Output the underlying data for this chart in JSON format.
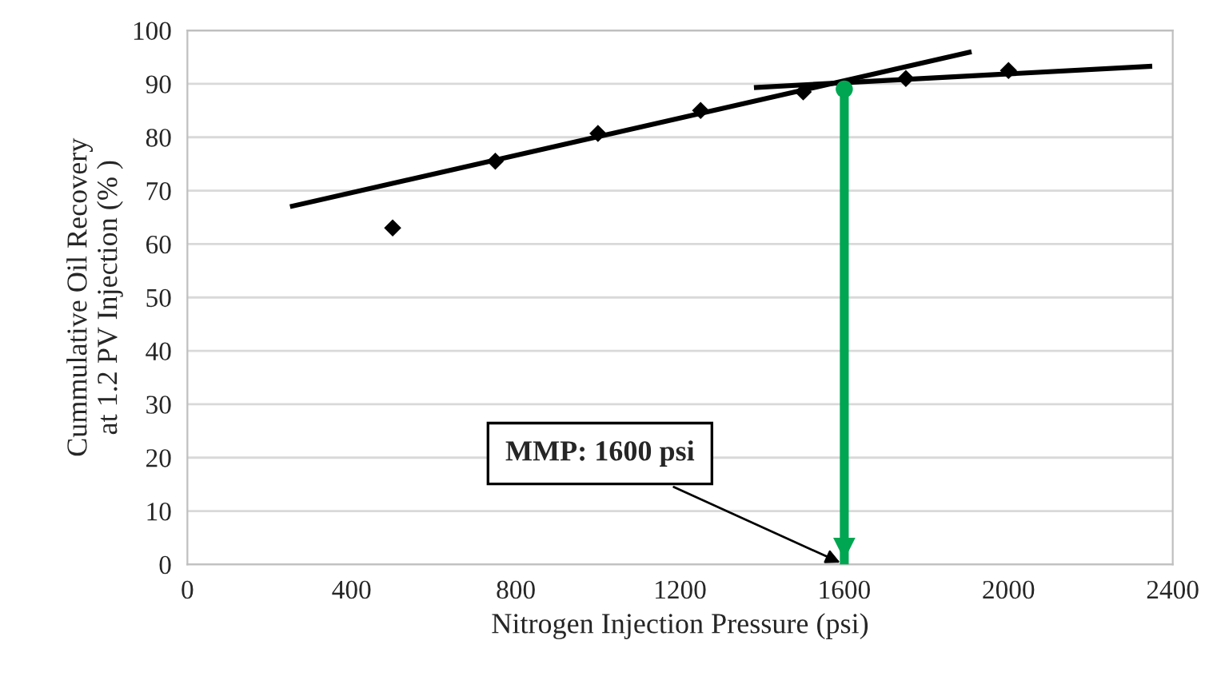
{
  "chart_data": {
    "type": "scatter",
    "xlabel": "Nitrogen Injection Pressure (psi)",
    "ylabel": "Cummulative Oil Recovery\nat 1.2 PV Injection (% )",
    "xlim": [
      0,
      2400
    ],
    "xticks": [
      0,
      400,
      800,
      1200,
      1600,
      2000,
      2400
    ],
    "ylim": [
      0,
      100
    ],
    "yticks": [
      0,
      10,
      20,
      30,
      40,
      50,
      60,
      70,
      80,
      90,
      100
    ],
    "grid": "y",
    "series": [
      {
        "color": "#000000",
        "marker": "diamond",
        "x": [
          500,
          750,
          1000,
          1250,
          1500,
          1750,
          2000
        ],
        "values": [
          63,
          75.5,
          80.7,
          85,
          88.5,
          91,
          92.5
        ]
      },
      {
        "type": "line",
        "color": "#000000",
        "marker": "none",
        "x": [
          250,
          1910
        ],
        "values": [
          67,
          96
        ]
      },
      {
        "type": "line",
        "color": "#000000",
        "marker": "none",
        "x": [
          1380,
          2350
        ],
        "values": [
          89.3,
          93.3
        ]
      },
      {
        "type": "line",
        "color": "#00a651",
        "marker": "none",
        "x": [
          1600,
          1600
        ],
        "values": [
          89,
          0
        ]
      },
      {
        "color": "#00a651",
        "marker": "circle",
        "x": [
          1600
        ],
        "values": [
          89
        ]
      }
    ],
    "annotations": [
      {
        "text": "MMP: 1600 psi",
        "x": 1600,
        "y": 0
      }
    ]
  }
}
